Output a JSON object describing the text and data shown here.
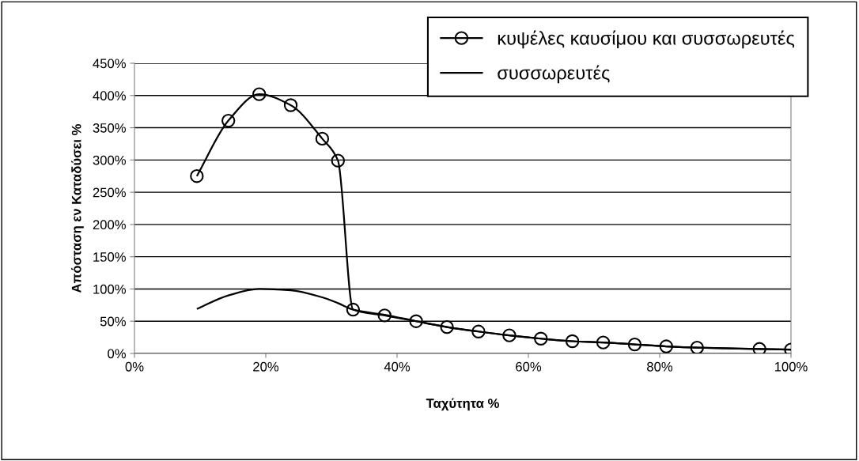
{
  "chart_data": {
    "type": "line",
    "xlabel": "Ταχύτητα %",
    "ylabel": "Απόσταση εν Καταδύσει %",
    "x": [
      9.5,
      14.3,
      19.0,
      23.8,
      28.6,
      31.0,
      33.3,
      38.1,
      42.9,
      47.6,
      52.4,
      57.1,
      61.9,
      66.7,
      71.4,
      76.2,
      81.0,
      85.7,
      95.2,
      100
    ],
    "series": [
      {
        "name": "κυψέλες καυσίμου και συσσωρευτές",
        "color": "#000000",
        "marker": "circle",
        "values": [
          275,
          361,
          402,
          385,
          333,
          299,
          68,
          59,
          50,
          41,
          34,
          28,
          23,
          19,
          17,
          14,
          11,
          9,
          7,
          6
        ]
      },
      {
        "name": "συσσωρευτές",
        "color": "#000000",
        "marker": "none",
        "values": [
          69,
          90,
          100,
          98,
          87,
          78,
          68,
          60,
          50,
          41,
          34,
          28,
          23,
          19,
          17,
          14,
          11,
          9,
          7,
          6
        ]
      }
    ],
    "xlim": [
      0,
      100
    ],
    "ylim": [
      0,
      450
    ],
    "xticks": [
      {
        "value": 0,
        "label": "0%"
      },
      {
        "value": 20,
        "label": "20%"
      },
      {
        "value": 40,
        "label": "40%"
      },
      {
        "value": 60,
        "label": "60%"
      },
      {
        "value": 80,
        "label": "80%"
      },
      {
        "value": 100,
        "label": "100%"
      }
    ],
    "yticks": [
      {
        "value": 0,
        "label": "0%"
      },
      {
        "value": 50,
        "label": "50%"
      },
      {
        "value": 100,
        "label": "100%"
      },
      {
        "value": 150,
        "label": "150%"
      },
      {
        "value": 200,
        "label": "200%"
      },
      {
        "value": 250,
        "label": "250%"
      },
      {
        "value": 300,
        "label": "300%"
      },
      {
        "value": 350,
        "label": "350%"
      },
      {
        "value": 400,
        "label": "400%"
      },
      {
        "value": 450,
        "label": "450%"
      }
    ],
    "grid": "y",
    "legend": "top right",
    "line_style": "solid"
  }
}
